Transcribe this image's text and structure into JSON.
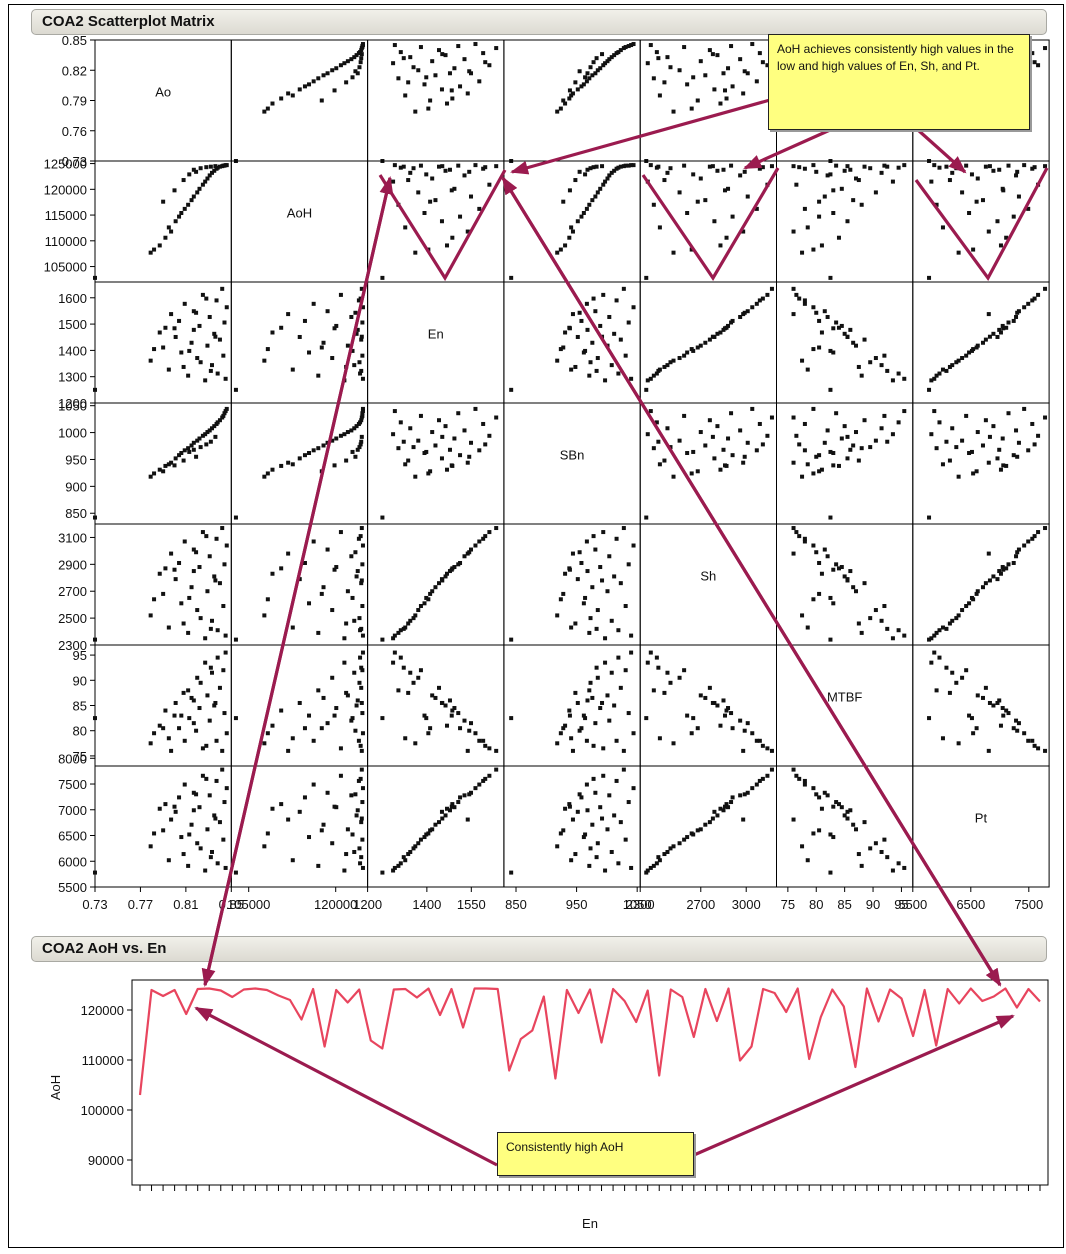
{
  "panels": {
    "matrix_title": "COA2 Scatterplot Matrix",
    "line_title": "COA2 AoH vs. En"
  },
  "callouts": {
    "top": "AoH achieves consistently high values in the low and high values of En, Sh, and Pt.",
    "bottom": "Consistently high AoH"
  },
  "colors": {
    "points": "#111111",
    "line": "#e8455e",
    "arrow": "#9b1b4f",
    "callout_bg": "#ffff80"
  },
  "chart_data": [
    {
      "type": "scatter",
      "title": "COA2 Scatterplot Matrix",
      "variables": [
        "Ao",
        "AoH",
        "En",
        "SBn",
        "Sh",
        "MTBF",
        "Pt"
      ],
      "ranges": {
        "Ao": [
          0.73,
          0.85
        ],
        "AoH": [
          102000,
          125500
        ],
        "En": [
          1200,
          1660
        ],
        "SBn": [
          830,
          1055
        ],
        "Sh": [
          2300,
          3200
        ],
        "MTBF": [
          73,
          97
        ],
        "Pt": [
          5500,
          7850
        ]
      },
      "y_ticks": {
        "Ao": [
          "0.85",
          "0.82",
          "0.79",
          "0.76",
          "0.73"
        ],
        "AoH": [
          "125000",
          "120000",
          "115000",
          "110000",
          "105000"
        ],
        "En": [
          "1600",
          "1500",
          "1400",
          "1300",
          "1200"
        ],
        "SBn": [
          "1050",
          "1000",
          "950",
          "900",
          "850"
        ],
        "Sh": [
          "3100",
          "2900",
          "2700",
          "2500",
          "2300"
        ],
        "MTBF": [
          "95",
          "90",
          "85",
          "80",
          "75"
        ],
        "Pt": [
          "8000",
          "7500",
          "7000",
          "6500",
          "6000",
          "5500"
        ]
      },
      "y_tick_values": {
        "Ao": [
          0.85,
          0.82,
          0.79,
          0.76,
          0.73
        ],
        "AoH": [
          125000,
          120000,
          115000,
          110000,
          105000
        ],
        "En": [
          1600,
          1500,
          1400,
          1300,
          1200
        ],
        "SBn": [
          1050,
          1000,
          950,
          900,
          850
        ],
        "Sh": [
          3100,
          2900,
          2700,
          2500,
          2300
        ],
        "MTBF": [
          95,
          90,
          85,
          80,
          75
        ],
        "Pt": [
          8000,
          7500,
          7000,
          6500,
          6000,
          5500
        ]
      },
      "x_ticks": {
        "Ao": [
          "0.73",
          "0.77",
          "0.81",
          "0.85"
        ],
        "AoH": [
          "105000",
          "120000"
        ],
        "En": [
          "1200",
          "1400",
          "1550"
        ],
        "SBn": [
          "850",
          "950",
          "1050"
        ],
        "Sh": [
          "2300",
          "2700",
          "3000"
        ],
        "MTBF": [
          "75",
          "80",
          "85",
          "90",
          "95"
        ],
        "Pt": [
          "5500",
          "6500",
          "7500"
        ]
      },
      "x_tick_values": {
        "Ao": [
          0.73,
          0.77,
          0.81,
          0.85
        ],
        "AoH": [
          105000,
          120000
        ],
        "En": [
          1200,
          1400,
          1550
        ],
        "SBn": [
          850,
          950,
          1050
        ],
        "Sh": [
          2300,
          2700,
          3000
        ],
        "MTBF": [
          75,
          80,
          85,
          90,
          95
        ],
        "Pt": [
          5500,
          6500,
          7500
        ]
      },
      "points": [
        {
          "Ao": 0.73,
          "AoH": 102800,
          "En": 1250,
          "SBn": 842,
          "Sh": 2340,
          "MTBF": 82.5,
          "Pt": 5780
        },
        {
          "Ao": 0.782,
          "AoH": 108300,
          "En": 1405,
          "SBn": 924,
          "Sh": 2640,
          "MTBF": 79.5,
          "Pt": 6540
        },
        {
          "Ao": 0.787,
          "AoH": 109100,
          "En": 1468,
          "SBn": 931,
          "Sh": 2830,
          "MTBF": 81.0,
          "Pt": 7020
        },
        {
          "Ao": 0.779,
          "AoH": 107700,
          "En": 1361,
          "SBn": 918,
          "Sh": 2520,
          "MTBF": 77.5,
          "Pt": 6290
        },
        {
          "Ao": 0.792,
          "AoH": 110600,
          "En": 1486,
          "SBn": 938,
          "Sh": 2870,
          "MTBF": 84.0,
          "Pt": 7110
        },
        {
          "Ao": 0.797,
          "AoH": 111800,
          "En": 1538,
          "SBn": 944,
          "Sh": 2980,
          "MTBF": 76.0,
          "Pt": 6810
        },
        {
          "Ao": 0.795,
          "AoH": 112600,
          "En": 1327,
          "SBn": 941,
          "Sh": 2430,
          "MTBF": 78.5,
          "Pt": 6020
        },
        {
          "Ao": 0.801,
          "AoH": 113800,
          "En": 1451,
          "SBn": 952,
          "Sh": 2790,
          "MTBF": 85.5,
          "Pt": 6960
        },
        {
          "Ao": 0.804,
          "AoH": 114700,
          "En": 1512,
          "SBn": 958,
          "Sh": 2910,
          "MTBF": 80.5,
          "Pt": 7240
        },
        {
          "Ao": 0.806,
          "AoH": 115400,
          "En": 1392,
          "SBn": 962,
          "Sh": 2610,
          "MTBF": 83.0,
          "Pt": 6470
        },
        {
          "Ao": 0.809,
          "AoH": 116200,
          "En": 1577,
          "SBn": 967,
          "Sh": 3070,
          "MTBF": 78.0,
          "Pt": 7490
        },
        {
          "Ao": 0.812,
          "AoH": 117000,
          "En": 1304,
          "SBn": 971,
          "Sh": 2390,
          "MTBF": 88.0,
          "Pt": 5910
        },
        {
          "Ao": 0.815,
          "AoH": 117900,
          "En": 1429,
          "SBn": 976,
          "Sh": 2730,
          "MTBF": 86.5,
          "Pt": 6710
        },
        {
          "Ao": 0.817,
          "AoH": 118600,
          "En": 1549,
          "SBn": 981,
          "Sh": 3010,
          "MTBF": 81.5,
          "Pt": 7330
        },
        {
          "Ao": 0.82,
          "AoH": 119400,
          "En": 1371,
          "SBn": 985,
          "Sh": 2560,
          "MTBF": 90.5,
          "Pt": 6350
        },
        {
          "Ao": 0.822,
          "AoH": 120100,
          "En": 1493,
          "SBn": 989,
          "Sh": 2880,
          "MTBF": 84.5,
          "Pt": 7050
        },
        {
          "Ao": 0.825,
          "AoH": 120900,
          "En": 1611,
          "SBn": 994,
          "Sh": 3140,
          "MTBF": 76.5,
          "Pt": 7660
        },
        {
          "Ao": 0.827,
          "AoH": 121500,
          "En": 1286,
          "SBn": 997,
          "Sh": 2350,
          "MTBF": 93.5,
          "Pt": 5820
        },
        {
          "Ao": 0.829,
          "AoH": 122100,
          "En": 1418,
          "SBn": 1001,
          "Sh": 2700,
          "MTBF": 87.0,
          "Pt": 6620
        },
        {
          "Ao": 0.831,
          "AoH": 122700,
          "En": 1527,
          "SBn": 1004,
          "Sh": 2960,
          "MTBF": 82.0,
          "Pt": 7280
        },
        {
          "Ao": 0.833,
          "AoH": 123200,
          "En": 1344,
          "SBn": 1008,
          "Sh": 2480,
          "MTBF": 91.5,
          "Pt": 6180
        },
        {
          "Ao": 0.835,
          "AoH": 123600,
          "En": 1463,
          "SBn": 1012,
          "Sh": 2810,
          "MTBF": 85.0,
          "Pt": 6890
        },
        {
          "Ao": 0.837,
          "AoH": 124000,
          "En": 1590,
          "SBn": 1016,
          "Sh": 3090,
          "MTBF": 78.0,
          "Pt": 7560
        },
        {
          "Ao": 0.838,
          "AoH": 124200,
          "En": 1312,
          "SBn": 1019,
          "Sh": 2410,
          "MTBF": 94.5,
          "Pt": 5960
        },
        {
          "Ao": 0.84,
          "AoH": 124400,
          "En": 1441,
          "SBn": 1023,
          "Sh": 2760,
          "MTBF": 88.5,
          "Pt": 6760
        },
        {
          "Ao": 0.842,
          "AoH": 124500,
          "En": 1634,
          "SBn": 1028,
          "Sh": 3170,
          "MTBF": 76.0,
          "Pt": 7780
        },
        {
          "Ao": 0.843,
          "AoH": 124600,
          "En": 1380,
          "SBn": 1031,
          "Sh": 2590,
          "MTBF": 92.0,
          "Pt": 6420
        },
        {
          "Ao": 0.844,
          "AoH": 124600,
          "En": 1506,
          "SBn": 1036,
          "Sh": 2900,
          "MTBF": 83.5,
          "Pt": 7150
        },
        {
          "Ao": 0.845,
          "AoH": 124700,
          "En": 1292,
          "SBn": 1040,
          "Sh": 2370,
          "MTBF": 95.5,
          "Pt": 5870
        },
        {
          "Ao": 0.846,
          "AoH": 124700,
          "En": 1564,
          "SBn": 1044,
          "Sh": 3040,
          "MTBF": 79.5,
          "Pt": 7420
        },
        {
          "Ao": 0.817,
          "AoH": 123800,
          "En": 1478,
          "SBn": 968,
          "Sh": 2850,
          "MTBF": 86.0,
          "Pt": 6990
        },
        {
          "Ao": 0.823,
          "AoH": 124100,
          "En": 1355,
          "SBn": 973,
          "Sh": 2500,
          "MTBF": 89.5,
          "Pt": 6250
        },
        {
          "Ao": 0.828,
          "AoH": 124300,
          "En": 1597,
          "SBn": 978,
          "Sh": 3110,
          "MTBF": 77.0,
          "Pt": 7600
        },
        {
          "Ao": 0.832,
          "AoH": 124400,
          "En": 1322,
          "SBn": 983,
          "Sh": 2420,
          "MTBF": 92.5,
          "Pt": 6080
        },
        {
          "Ao": 0.836,
          "AoH": 124500,
          "En": 1452,
          "SBn": 992,
          "Sh": 2780,
          "MTBF": 85.5,
          "Pt": 6830
        },
        {
          "Ao": 0.813,
          "AoH": 122900,
          "En": 1398,
          "SBn": 964,
          "Sh": 2650,
          "MTBF": 82.5,
          "Pt": 6520
        },
        {
          "Ao": 0.819,
          "AoH": 123400,
          "En": 1543,
          "SBn": 955,
          "Sh": 2990,
          "MTBF": 80.0,
          "Pt": 7300
        },
        {
          "Ao": 0.808,
          "AoH": 121800,
          "En": 1337,
          "SBn": 948,
          "Sh": 2460,
          "MTBF": 87.5,
          "Pt": 6140
        },
        {
          "Ao": 0.8,
          "AoH": 119800,
          "En": 1484,
          "SBn": 939,
          "Sh": 2860,
          "MTBF": 83.0,
          "Pt": 7060
        },
        {
          "Ao": 0.79,
          "AoH": 117600,
          "En": 1411,
          "SBn": 928,
          "Sh": 2680,
          "MTBF": 80.5,
          "Pt": 6600
        }
      ]
    },
    {
      "type": "line",
      "title": "COA2 AoH vs. En",
      "xlabel": "En",
      "ylabel": "AoH",
      "ylim": [
        85000,
        126000
      ],
      "y_ticks": [
        "120000",
        "110000",
        "100000",
        "90000"
      ],
      "y_tick_values": [
        120000,
        110000,
        100000,
        90000
      ],
      "x": [
        1250,
        1255,
        1260,
        1265,
        1270,
        1275,
        1280,
        1285,
        1290,
        1295,
        1300,
        1305,
        1310,
        1315,
        1320,
        1325,
        1330,
        1335,
        1340,
        1345,
        1350,
        1355,
        1360,
        1365,
        1370,
        1375,
        1380,
        1385,
        1390,
        1395,
        1400,
        1405,
        1410,
        1415,
        1420,
        1425,
        1430,
        1435,
        1440,
        1445,
        1450,
        1455,
        1460,
        1465,
        1470,
        1475,
        1480,
        1485,
        1490,
        1495,
        1500,
        1505,
        1510,
        1515,
        1520,
        1525,
        1530,
        1535,
        1540,
        1545,
        1550,
        1555,
        1560,
        1565,
        1570,
        1575,
        1580,
        1585,
        1590,
        1595,
        1600,
        1605,
        1610,
        1615,
        1620,
        1625,
        1630,
        1635,
        1640
      ],
      "values": [
        103000,
        124000,
        122800,
        124000,
        119200,
        124200,
        124300,
        123900,
        122600,
        124100,
        124300,
        124000,
        122900,
        122000,
        118100,
        124200,
        112700,
        124000,
        121500,
        124100,
        113900,
        112300,
        124100,
        124200,
        122500,
        124300,
        119000,
        124200,
        116500,
        124300,
        124300,
        124200,
        107900,
        114200,
        115900,
        122700,
        106300,
        124000,
        119400,
        124100,
        113500,
        124200,
        121800,
        117600,
        123900,
        106900,
        124100,
        122600,
        114600,
        124200,
        117800,
        124300,
        109900,
        112700,
        124200,
        123400,
        119600,
        124300,
        110200,
        118600,
        124100,
        120700,
        108600,
        124300,
        117700,
        124100,
        122300,
        114800,
        124000,
        112900,
        124200,
        121300,
        124300,
        121800,
        122700,
        124300,
        120500,
        124200,
        121700
      ]
    }
  ]
}
